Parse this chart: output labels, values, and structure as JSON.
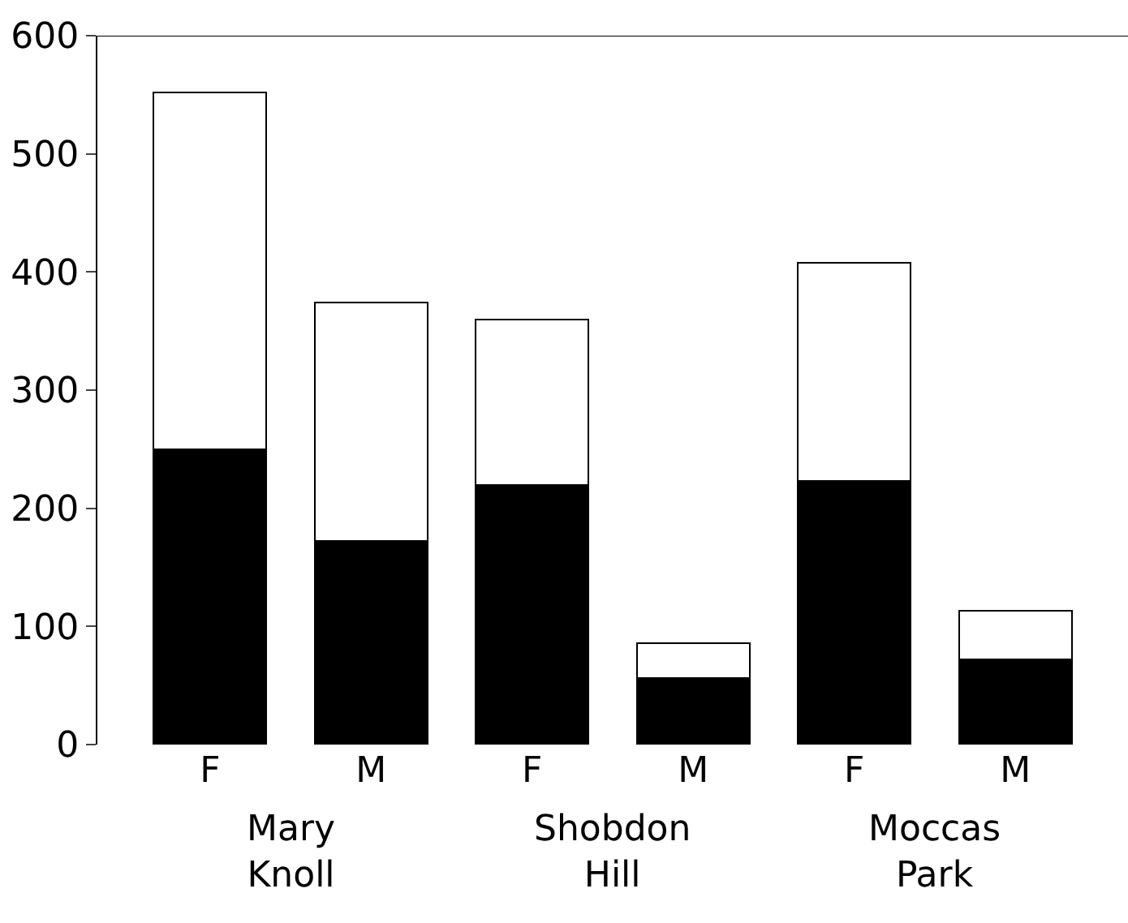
{
  "chart_data": {
    "type": "bar",
    "stacked": true,
    "categories": [
      "F",
      "M",
      "F",
      "M",
      "F",
      "M"
    ],
    "series": [
      {
        "color": "#000000",
        "values": [
          250,
          172,
          220,
          56,
          223,
          72
        ]
      },
      {
        "color": "#ffffff",
        "values": [
          302,
          202,
          140,
          30,
          185,
          41
        ]
      }
    ],
    "ylim": [
      0,
      600
    ],
    "yticks": [
      0,
      100,
      200,
      300,
      400,
      500,
      600
    ],
    "legend": false,
    "annotations": [
      "Mary Knoll",
      "Shobdon Hill",
      "Moccas Park"
    ]
  }
}
